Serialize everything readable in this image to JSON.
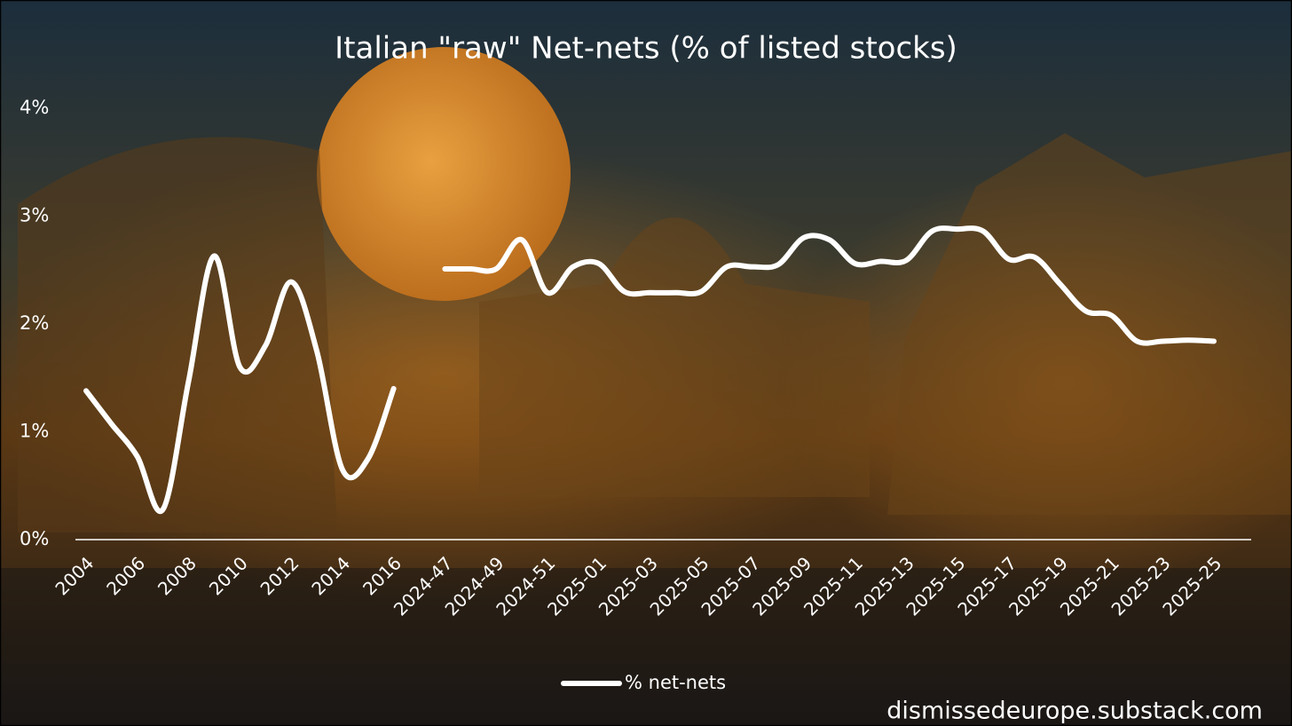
{
  "chart_data": {
    "type": "line",
    "title": "Italian \"raw\" Net-nets (% of listed stocks)",
    "source": "dismissedeurope.substack.com",
    "categories": [
      "2004",
      null,
      "2006",
      null,
      "2008",
      null,
      "2010",
      null,
      "2012",
      null,
      "2014",
      null,
      "2016",
      null,
      "2024-47",
      null,
      "2024-49",
      null,
      "2024-51",
      null,
      "2025-01",
      null,
      "2025-03",
      null,
      "2025-05",
      null,
      "2025-07",
      null,
      "2025-09",
      null,
      "2025-11",
      null,
      "2025-13",
      null,
      "2025-15",
      null,
      "2025-17",
      null,
      "2025-19",
      null,
      "2025-21",
      null,
      "2025-23",
      null,
      "2025-25"
    ],
    "series": [
      {
        "name": "% net-nets",
        "color": "#ffffff",
        "values": [
          1.38,
          1.07,
          0.77,
          0.28,
          1.47,
          2.63,
          1.6,
          1.8,
          2.39,
          1.75,
          0.65,
          0.75,
          1.4,
          null,
          2.51,
          2.51,
          2.51,
          2.78,
          2.29,
          2.53,
          2.56,
          2.3,
          2.29,
          2.29,
          2.3,
          2.53,
          2.53,
          2.55,
          2.8,
          2.78,
          2.56,
          2.58,
          2.59,
          2.86,
          2.88,
          2.86,
          2.6,
          2.62,
          2.37,
          2.12,
          2.08,
          1.84,
          1.84,
          1.85,
          1.84
        ]
      }
    ],
    "ylim": [
      0,
      4
    ],
    "yticks": [
      {
        "value": 0,
        "label": "0%"
      },
      {
        "value": 1,
        "label": "1%"
      },
      {
        "value": 2,
        "label": "2%"
      },
      {
        "value": 3,
        "label": "3%"
      },
      {
        "value": 4,
        "label": "4%"
      }
    ],
    "grid": false,
    "legend": "bottom"
  }
}
